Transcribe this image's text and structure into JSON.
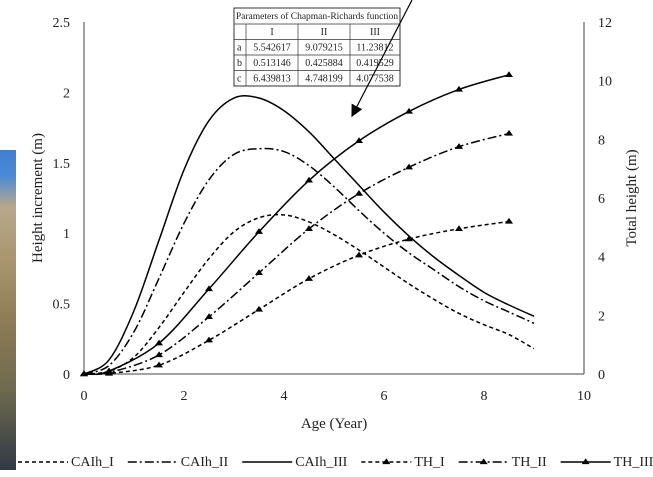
{
  "chart_data": {
    "type": "line",
    "xlabel": "Age (Year)",
    "ylabel_left": "Height increment (m)",
    "ylabel_right": "Total height (m)",
    "xlim": [
      0,
      10
    ],
    "ylim_left": [
      0,
      2.5
    ],
    "ylim_right": [
      0,
      12
    ],
    "x_ticks": [
      0,
      2,
      4,
      6,
      8,
      10
    ],
    "y_ticks_left": [
      0,
      0.5,
      1,
      1.5,
      2,
      2.5
    ],
    "y_ticks_right": [
      0,
      2,
      4,
      6,
      8,
      10,
      12
    ],
    "legend_position": "bottom",
    "series": [
      {
        "name": "CAIh_I",
        "axis": "left",
        "style": "dashed",
        "marker": "none",
        "x": [
          0,
          0.5,
          1,
          1.5,
          2,
          2.5,
          3,
          3.5,
          4,
          4.5,
          5,
          5.5,
          6,
          6.5,
          7,
          7.5,
          8,
          8.5,
          9
        ],
        "y": [
          0,
          0.02,
          0.12,
          0.33,
          0.58,
          0.82,
          1.01,
          1.11,
          1.13,
          1.08,
          0.99,
          0.88,
          0.76,
          0.64,
          0.53,
          0.43,
          0.35,
          0.28,
          0.18
        ]
      },
      {
        "name": "CAIh_II",
        "axis": "left",
        "style": "dashdot",
        "marker": "none",
        "x": [
          0,
          0.5,
          1,
          1.5,
          2,
          2.5,
          3,
          3.5,
          4,
          4.5,
          5,
          5.5,
          6,
          6.5,
          7,
          7.5,
          8,
          8.5,
          9
        ],
        "y": [
          0,
          0.06,
          0.3,
          0.68,
          1.07,
          1.38,
          1.56,
          1.6,
          1.58,
          1.48,
          1.33,
          1.16,
          1.0,
          0.86,
          0.74,
          0.62,
          0.52,
          0.44,
          0.36
        ]
      },
      {
        "name": "CAIh_III",
        "axis": "left",
        "style": "solid",
        "marker": "none",
        "x": [
          0,
          0.5,
          1,
          1.5,
          2,
          2.5,
          3,
          3.5,
          4,
          4.5,
          5,
          5.5,
          6,
          6.5,
          7,
          7.5,
          8,
          8.5,
          9
        ],
        "y": [
          0,
          0.1,
          0.45,
          0.95,
          1.45,
          1.8,
          1.96,
          1.96,
          1.87,
          1.72,
          1.53,
          1.34,
          1.15,
          0.98,
          0.83,
          0.7,
          0.58,
          0.49,
          0.41
        ]
      },
      {
        "name": "TH_I",
        "axis": "right",
        "style": "dashed",
        "marker": "triangle",
        "x": [
          0,
          0.5,
          1.5,
          2.5,
          3.5,
          4.5,
          5.5,
          6.5,
          7.5,
          8.5
        ],
        "y": [
          0,
          0.02,
          0.3,
          1.15,
          2.2,
          3.25,
          4.05,
          4.6,
          4.95,
          5.2
        ]
      },
      {
        "name": "TH_II",
        "axis": "right",
        "style": "dashdot",
        "marker": "triangle",
        "x": [
          0,
          0.5,
          1.5,
          2.5,
          3.5,
          4.5,
          5.5,
          6.5,
          7.5,
          8.5
        ],
        "y": [
          0,
          0.05,
          0.65,
          1.95,
          3.45,
          4.95,
          6.15,
          7.05,
          7.75,
          8.2
        ]
      },
      {
        "name": "TH_III",
        "axis": "right",
        "style": "solid",
        "marker": "triangle",
        "x": [
          0,
          0.5,
          1.5,
          2.5,
          3.5,
          4.5,
          5.5,
          6.5,
          7.5,
          8.5
        ],
        "y": [
          0,
          0.1,
          1.05,
          2.9,
          4.85,
          6.6,
          7.95,
          8.95,
          9.7,
          10.2
        ]
      }
    ],
    "inset_table": {
      "title": "Parameters of Chapman-Richards function",
      "columns": [
        "",
        "I",
        "II",
        "III"
      ],
      "rows": [
        [
          "a",
          "5.542617",
          "9.079215",
          "11.23812"
        ],
        [
          "b",
          "0.513146",
          "0.425884",
          "0.419529"
        ],
        [
          "c",
          "6.439813",
          "4.748199",
          "4.077538"
        ]
      ]
    }
  }
}
